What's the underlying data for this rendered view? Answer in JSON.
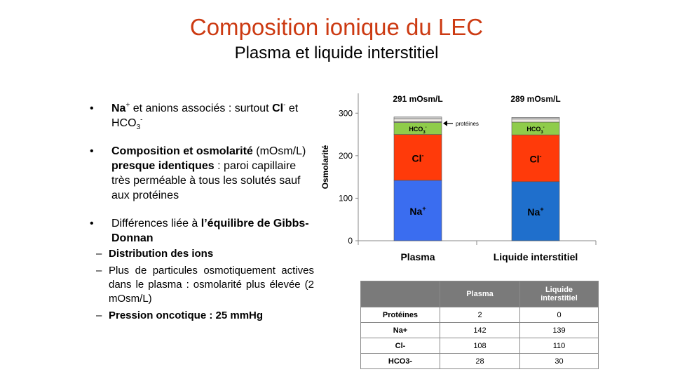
{
  "slide": {
    "title": "Composition ionique du LEC",
    "subtitle": "Plasma et liquide interstitiel"
  },
  "bullets": {
    "b1": {
      "na": "Na",
      "na_sup": "+",
      "t1": " et anions associés : surtout ",
      "cl": "Cl",
      "cl_sup": "-",
      "t2": " et HCO",
      "hco_sub": "3",
      "hco_sup": "-"
    },
    "b2": {
      "bold1": "Composition et osmolarité",
      "t1": " (mOsm/L) ",
      "bold2": "presque identiques",
      "t2": " : paroi capillaire très perméable à tous les solutés sauf aux protéines"
    },
    "b3": {
      "t1": "Différences liée à ",
      "bold1": "l’équilibre de Gibbs-Donnan"
    },
    "sub1": "Distribution des ions",
    "sub2": "Plus de particules osmotiquement actives dans le plasma : osmolarité plus élevée (2 mOsm/L)",
    "sub3": "Pression oncotique : 25 mmHg"
  },
  "chart_data": {
    "type": "bar",
    "stacked": true,
    "categories": [
      "Plasma",
      "Liquide interstitiel"
    ],
    "ylabel": "Osmolarité",
    "ylim": [
      0,
      350
    ],
    "yticks": [
      "0",
      "100",
      "200",
      "300"
    ],
    "series": [
      {
        "name": "Na+",
        "values": [
          142,
          139
        ],
        "colors": [
          "#3a6df0",
          "#1f6fcc"
        ]
      },
      {
        "name": "Cl-",
        "values": [
          108,
          110
        ],
        "colors": [
          "#ff3a0a",
          "#ff3a0a"
        ]
      },
      {
        "name": "HCO3-",
        "values": [
          28,
          30
        ],
        "colors": [
          "#8fcc4a",
          "#8fcc4a"
        ]
      },
      {
        "name": "protéines",
        "values": [
          2,
          0
        ],
        "colors": [
          "#a0a0a0",
          "#a0a0a0"
        ]
      }
    ],
    "topbands": [
      {
        "values": [
          7,
          7
        ],
        "color": "#ece8e2"
      },
      {
        "values": [
          4,
          4
        ],
        "color": "#c8c8c8"
      }
    ],
    "totals": [
      "291 mOsm/L",
      "289 mOsm/L"
    ],
    "seg_labels": {
      "na": "Na",
      "na_sup": "+",
      "cl": "Cl",
      "cl_sup": "-",
      "hco": "HCO",
      "hco_sub": "3",
      "hco_sup": "-"
    },
    "annotation": "protéines"
  },
  "table": {
    "headers": [
      "",
      "Plasma",
      "Liquide interstitiel"
    ],
    "rows": [
      [
        "Protéines",
        "2",
        "0"
      ],
      [
        "Na+",
        "142",
        "139"
      ],
      [
        "Cl-",
        "108",
        "110"
      ],
      [
        "HCO3-",
        "28",
        "30"
      ]
    ]
  }
}
